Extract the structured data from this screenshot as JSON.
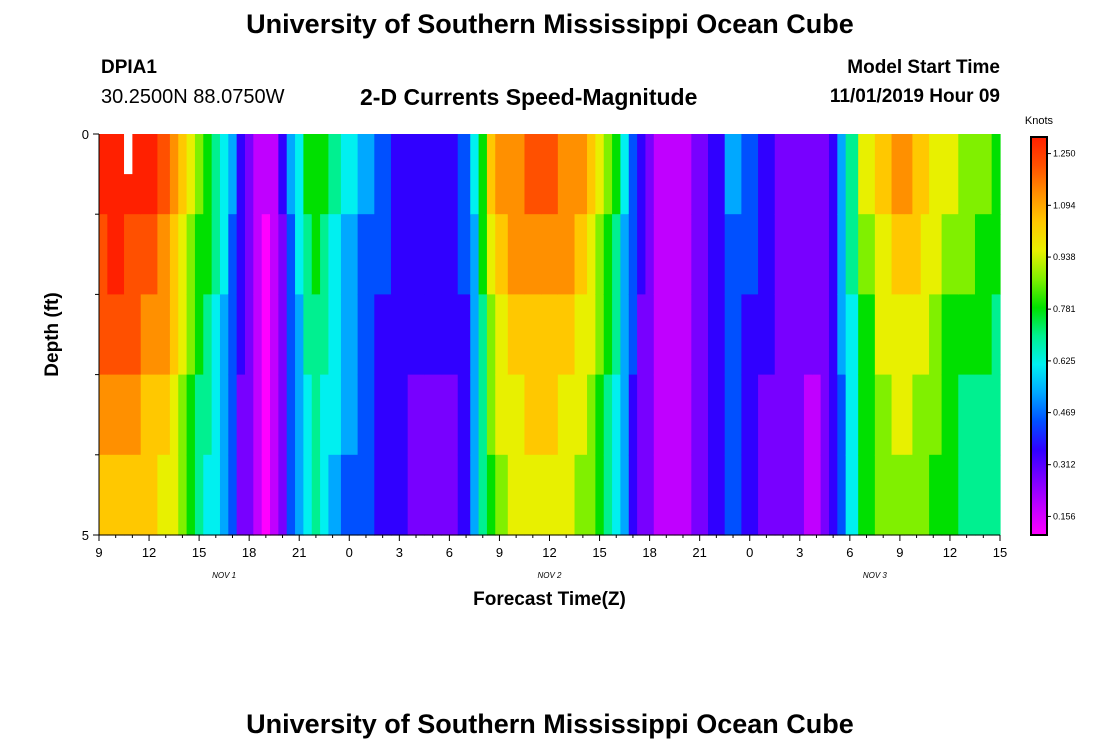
{
  "header": {
    "title": "University of Southern Mississippi Ocean Cube",
    "station_id": "DPIA1",
    "station_location": "30.2500N 88.0750W",
    "subtitle": "2-D Currents Speed-Magnitude",
    "model_start_label": "Model Start Time",
    "model_start_value": "11/01/2019 Hour 09"
  },
  "footer": {
    "title": "University of Southern Mississippi Ocean Cube"
  },
  "chart_data": {
    "type": "heatmap",
    "title": "2-D Currents Speed-Magnitude",
    "xlabel": "Forecast Time(Z)",
    "ylabel": "Depth (ft)",
    "x_start_hour": 9,
    "x_end_hour": 63,
    "x_tick_labels": [
      "9",
      "12",
      "15",
      "18",
      "21",
      "0",
      "3",
      "6",
      "9",
      "12",
      "15",
      "18",
      "21",
      "0",
      "3",
      "6",
      "9",
      "12",
      "15"
    ],
    "day_labels": [
      {
        "label": "NOV 1",
        "hour": 16.5
      },
      {
        "label": "NOV 2",
        "hour": 36
      },
      {
        "label": "NOV 3",
        "hour": 55.5
      }
    ],
    "y_tick_labels": [
      "0",
      "5"
    ],
    "ylim": [
      0,
      5
    ],
    "depth_levels": 5,
    "colorbar": {
      "unit": "Knots",
      "range": [
        0.1,
        1.3
      ],
      "tick_labels": [
        "1.250",
        "1.094",
        "0.938",
        "0.781",
        "0.625",
        "0.469",
        "0.312",
        "0.156"
      ],
      "colors": [
        "#ff00ff",
        "#c000ff",
        "#7800ff",
        "#3000ff",
        "#0050ff",
        "#00a8ff",
        "#00f0f0",
        "#00f090",
        "#00e000",
        "#80f000",
        "#e8f000",
        "#ffc800",
        "#ff9000",
        "#ff5000",
        "#ff2000"
      ]
    },
    "profile": {
      "hours": [
        9,
        10,
        11,
        12,
        13,
        13.5,
        14,
        14.5,
        15,
        15.5,
        16,
        16.5,
        17,
        17.5,
        18,
        18.5,
        19,
        19.5,
        20,
        20.5,
        21,
        21.5,
        22,
        22.5,
        23,
        24,
        25,
        26,
        27,
        28,
        29,
        30,
        31,
        31.5,
        32,
        32.5,
        33,
        34,
        35,
        36,
        37,
        38,
        38.5,
        39,
        39.5,
        40,
        40.5,
        41,
        41.5,
        42,
        42.5,
        43,
        44,
        45,
        46,
        47,
        48,
        49,
        50,
        51,
        51.5,
        52,
        52.5,
        53,
        53.5,
        54,
        55,
        56,
        57,
        57.5,
        58,
        58.5,
        59,
        60,
        61,
        62,
        63
      ],
      "values": [
        1.27,
        1.28,
        1.27,
        1.24,
        1.18,
        1.1,
        1.02,
        0.92,
        0.85,
        0.78,
        0.7,
        0.62,
        0.5,
        0.38,
        0.3,
        0.22,
        0.18,
        0.22,
        0.34,
        0.5,
        0.62,
        0.74,
        0.8,
        0.76,
        0.68,
        0.58,
        0.52,
        0.44,
        0.4,
        0.38,
        0.37,
        0.38,
        0.45,
        0.6,
        0.8,
        0.98,
        1.06,
        1.12,
        1.15,
        1.15,
        1.12,
        1.08,
        1.0,
        0.92,
        0.84,
        0.74,
        0.6,
        0.46,
        0.36,
        0.3,
        0.25,
        0.22,
        0.24,
        0.3,
        0.4,
        0.5,
        0.44,
        0.38,
        0.32,
        0.3,
        0.28,
        0.28,
        0.3,
        0.4,
        0.55,
        0.72,
        0.9,
        1.02,
        1.06,
        1.06,
        1.04,
        1.0,
        0.96,
        0.9,
        0.86,
        0.82,
        0.8
      ],
      "deep_factor": [
        1.0,
        0.95,
        0.89,
        0.84,
        0.8
      ]
    },
    "marker": {
      "hour_start": 10.5,
      "hour_end": 11.0,
      "depth_start": 0,
      "depth_end": 0.5
    }
  }
}
